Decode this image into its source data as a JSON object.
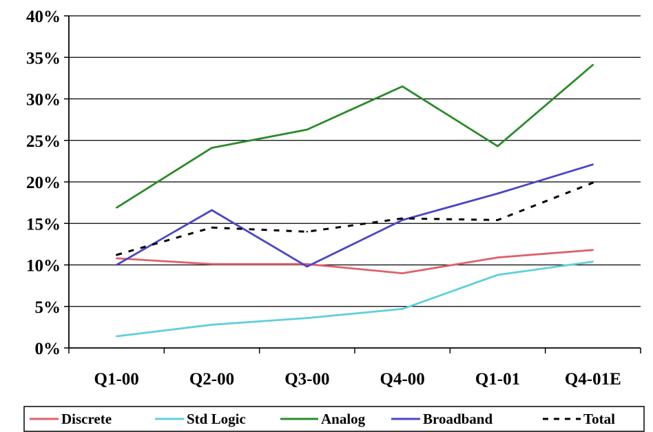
{
  "chart_data": {
    "type": "line",
    "title": "",
    "xlabel": "",
    "ylabel": "",
    "categories": [
      "Q1-00",
      "Q2-00",
      "Q3-00",
      "Q4-00",
      "Q1-01",
      "Q4-01E"
    ],
    "ylim": [
      0,
      40
    ],
    "yticks": [
      0,
      5,
      10,
      15,
      20,
      25,
      30,
      35,
      40
    ],
    "ytick_labels": [
      "0%",
      "5%",
      "10%",
      "15%",
      "20%",
      "25%",
      "30%",
      "35%",
      "40%"
    ],
    "grid": true,
    "legend_position": "bottom",
    "series": [
      {
        "name": "Discrete",
        "color": "#e0606a",
        "style": "solid",
        "values": [
          10.8,
          10.1,
          10.1,
          9.0,
          10.9,
          11.8
        ]
      },
      {
        "name": "Std Logic",
        "color": "#5fcfdc",
        "style": "solid",
        "values": [
          1.4,
          2.8,
          3.6,
          4.7,
          8.8,
          10.4
        ]
      },
      {
        "name": "Analog",
        "color": "#2a8a2a",
        "style": "solid",
        "values": [
          16.9,
          24.1,
          26.3,
          31.5,
          24.3,
          34.1
        ]
      },
      {
        "name": "Broadband",
        "color": "#4a44c8",
        "style": "solid",
        "values": [
          10.0,
          16.6,
          9.8,
          15.4,
          18.6,
          22.1
        ]
      },
      {
        "name": "Total",
        "color": "#000000",
        "style": "dashed",
        "values": [
          11.2,
          14.5,
          14.0,
          15.6,
          15.4,
          19.9
        ]
      }
    ]
  }
}
